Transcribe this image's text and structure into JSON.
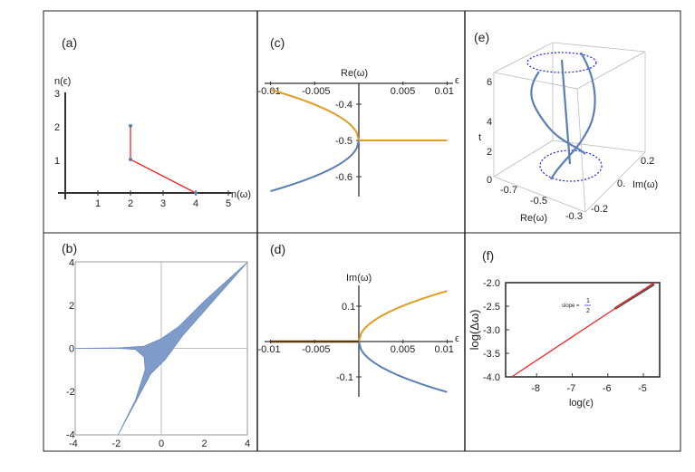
{
  "colors": {
    "orange": "#e19c24",
    "blue": "#5b7fb5",
    "red": "#ff2020",
    "dark": "#5a3a10",
    "dotted_circle": "#2020ff",
    "frame": "#222222"
  },
  "chart_data": [
    {
      "panel": "(a)",
      "type": "scatter",
      "xlabel": "n(ω)",
      "ylabel": "n(ϵ)",
      "xticks": [
        "1",
        "2",
        "3",
        "4",
        "5"
      ],
      "yticks": [
        "1",
        "2",
        "3"
      ],
      "xlim": [
        0,
        5
      ],
      "ylim": [
        0,
        3
      ],
      "points": [
        [
          2,
          2
        ],
        [
          2,
          1
        ],
        [
          4,
          0
        ]
      ],
      "polyline": [
        [
          2,
          2
        ],
        [
          2,
          1
        ],
        [
          4,
          0
        ]
      ]
    },
    {
      "panel": "(b)",
      "type": "area",
      "xlim": [
        -4,
        4
      ],
      "ylim": [
        -4,
        4
      ],
      "xticks": [
        "-4",
        "-2",
        "0",
        "2",
        "4"
      ],
      "yticks": [
        "-4",
        "-2",
        "0",
        "2",
        "4"
      ],
      "grid": "axes through origin"
    },
    {
      "panel": "(c)",
      "type": "line",
      "xlabel": "ϵ",
      "ylabel": "Re(ω)",
      "xlim": [
        -0.01,
        0.01
      ],
      "xticks": [
        "-0.01",
        "-0.005",
        "0.005",
        "0.01"
      ],
      "yticks": [
        "-0.4",
        "-0.5",
        "-0.6"
      ],
      "series": [
        {
          "color": "orange",
          "x": [
            -0.01,
            0
          ],
          "y": [
            -0.36,
            -0.5
          ],
          "then_constant": -0.5
        },
        {
          "color": "blue",
          "x": [
            -0.01,
            0
          ],
          "y": [
            -0.64,
            -0.5
          ]
        }
      ]
    },
    {
      "panel": "(d)",
      "type": "line",
      "xlabel": "ϵ",
      "ylabel": "Im(ω)",
      "xlim": [
        -0.01,
        0.01
      ],
      "xticks": [
        "-0.01",
        "-0.005",
        "0.005",
        "0.01"
      ],
      "yticks": [
        "0.1",
        "-0.1"
      ],
      "series": [
        {
          "color": "orange",
          "x": [
            0,
            0.01
          ],
          "y": [
            0,
            0.143
          ]
        },
        {
          "color": "blue",
          "x": [
            0,
            0.01
          ],
          "y": [
            0,
            -0.143
          ]
        },
        {
          "color": "dark",
          "x": [
            -0.01,
            0
          ],
          "y": [
            0,
            0
          ]
        }
      ]
    },
    {
      "panel": "(e)",
      "type": "line3d",
      "xlabel": "Re(ω)",
      "ylabel": "Im(ω)",
      "zlabel": "t",
      "xticks": [
        "-0.7",
        "-0.5",
        "-0.3"
      ],
      "yticks": [
        "-0.2",
        "0.",
        "0.2"
      ],
      "zticks": [
        "0",
        "2",
        "4",
        "6"
      ]
    },
    {
      "panel": "(f)",
      "type": "line",
      "xlabel": "log(ϵ)",
      "ylabel": "log(Δω)",
      "xticks": [
        "-8",
        "-7",
        "-6",
        "-5"
      ],
      "yticks": [
        "-2.0",
        "-2.5",
        "-3.0",
        "-3.5",
        "-4.0"
      ],
      "xlim": [
        -8.87,
        -4.54
      ],
      "ylim": [
        -4,
        -2
      ],
      "series": [
        {
          "color": "red",
          "x": [
            -8.7,
            -4.7
          ],
          "y": [
            -4,
            -2
          ]
        }
      ],
      "annotation": {
        "text": "slope =",
        "num": "1",
        "den": "2"
      }
    }
  ]
}
